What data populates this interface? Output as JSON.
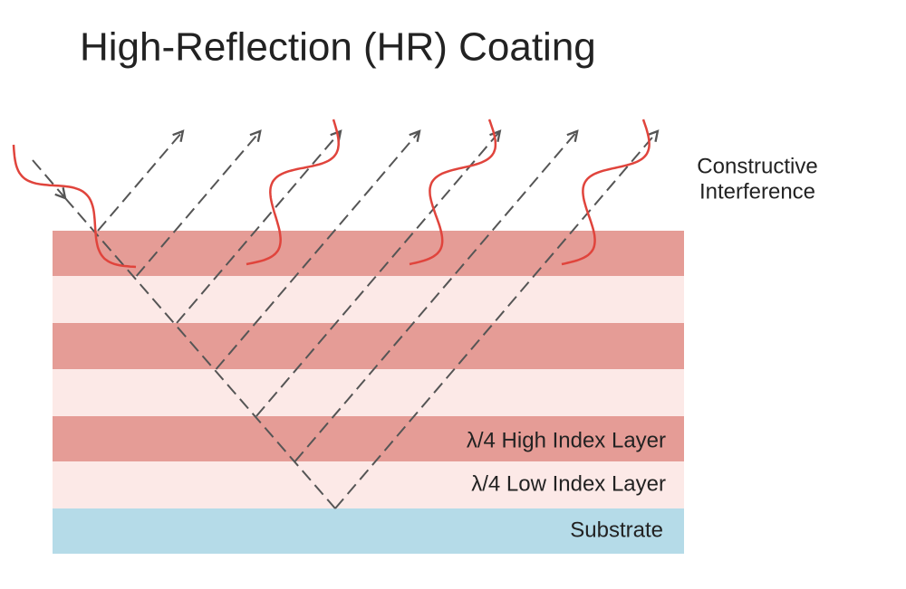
{
  "title": "High-Reflection (HR) Coating",
  "annotation": {
    "lines": [
      "Constructive",
      "Interference"
    ]
  },
  "layers": {
    "high_index": "λ/4 High Index Layer",
    "low_index": "λ/4 Low Index Layer",
    "substrate": "Substrate"
  }
}
